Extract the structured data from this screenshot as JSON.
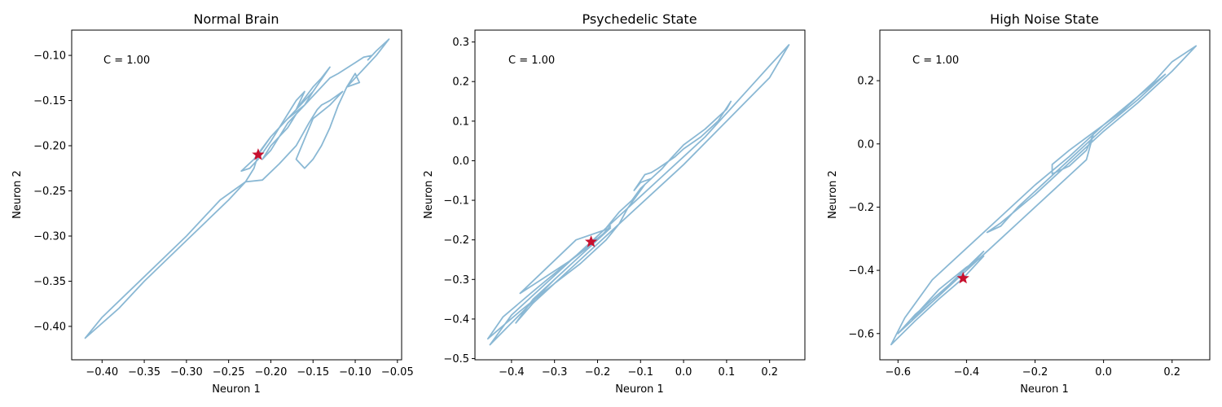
{
  "chart_data": [
    {
      "type": "line",
      "title": "Normal Brain",
      "xlabel": "Neuron 1",
      "ylabel": "Neuron 2",
      "annotation": "C = 1.00",
      "xlim": [
        -0.436,
        -0.045
      ],
      "ylim": [
        -0.437,
        -0.072
      ],
      "xticks": [
        -0.4,
        -0.35,
        -0.3,
        -0.25,
        -0.2,
        -0.15,
        -0.1,
        -0.05
      ],
      "xtick_labels": [
        "−0.40",
        "−0.35",
        "−0.30",
        "−0.25",
        "−0.20",
        "−0.15",
        "−0.10",
        "−0.05"
      ],
      "yticks": [
        -0.4,
        -0.35,
        -0.3,
        -0.25,
        -0.2,
        -0.15,
        -0.1
      ],
      "ytick_labels": [
        "−0.40",
        "−0.35",
        "−0.30",
        "−0.25",
        "−0.20",
        "−0.15",
        "−0.10"
      ],
      "line_color": "#8ab8d4",
      "marker": {
        "x": -0.215,
        "y": -0.21,
        "color": "#c8102e",
        "shape": "star"
      },
      "series": [
        {
          "x": [
            -0.215,
            -0.2,
            -0.18,
            -0.19,
            -0.17,
            -0.16,
            -0.17,
            -0.15,
            -0.14,
            -0.13,
            -0.15,
            -0.165,
            -0.175,
            -0.19,
            -0.2,
            -0.215,
            -0.225,
            -0.235,
            -0.22,
            -0.2,
            -0.18,
            -0.16,
            -0.15,
            -0.16,
            -0.17,
            -0.18,
            -0.19,
            -0.2,
            -0.21,
            -0.2,
            -0.19,
            -0.18,
            -0.17,
            -0.16,
            -0.15,
            -0.14,
            -0.13,
            -0.12,
            -0.11,
            -0.1,
            -0.09,
            -0.08,
            -0.085,
            -0.075,
            -0.06,
            -0.075,
            -0.09,
            -0.1,
            -0.11,
            -0.095,
            -0.1,
            -0.11,
            -0.12,
            -0.13,
            -0.14,
            -0.15,
            -0.16,
            -0.17,
            -0.15,
            -0.13,
            -0.115,
            -0.13,
            -0.14,
            -0.145,
            -0.155,
            -0.17,
            -0.19,
            -0.21,
            -0.23,
            -0.25,
            -0.3,
            -0.35,
            -0.38,
            -0.42,
            -0.4,
            -0.35,
            -0.3,
            -0.26,
            -0.23,
            -0.22,
            -0.215
          ],
          "y": [
            -0.21,
            -0.19,
            -0.17,
            -0.18,
            -0.15,
            -0.14,
            -0.16,
            -0.135,
            -0.125,
            -0.113,
            -0.14,
            -0.155,
            -0.165,
            -0.18,
            -0.195,
            -0.215,
            -0.225,
            -0.228,
            -0.215,
            -0.19,
            -0.17,
            -0.155,
            -0.14,
            -0.155,
            -0.165,
            -0.18,
            -0.19,
            -0.2,
            -0.215,
            -0.205,
            -0.19,
            -0.175,
            -0.165,
            -0.155,
            -0.145,
            -0.135,
            -0.125,
            -0.12,
            -0.114,
            -0.108,
            -0.102,
            -0.1,
            -0.105,
            -0.095,
            -0.082,
            -0.1,
            -0.115,
            -0.125,
            -0.135,
            -0.13,
            -0.12,
            -0.135,
            -0.155,
            -0.18,
            -0.2,
            -0.215,
            -0.225,
            -0.215,
            -0.17,
            -0.155,
            -0.14,
            -0.15,
            -0.155,
            -0.16,
            -0.175,
            -0.2,
            -0.22,
            -0.238,
            -0.24,
            -0.26,
            -0.305,
            -0.35,
            -0.38,
            -0.413,
            -0.39,
            -0.345,
            -0.3,
            -0.26,
            -0.24,
            -0.225,
            -0.21
          ]
        }
      ]
    },
    {
      "type": "line",
      "title": "Psychedelic State",
      "xlabel": "Neuron 1",
      "ylabel": "Neuron 2",
      "annotation": "C = 1.00",
      "xlim": [
        -0.485,
        0.282
      ],
      "ylim": [
        -0.503,
        0.33
      ],
      "xticks": [
        -0.4,
        -0.3,
        -0.2,
        -0.1,
        0.0,
        0.1,
        0.2
      ],
      "xtick_labels": [
        "−0.4",
        "−0.3",
        "−0.2",
        "−0.1",
        "0.0",
        "0.1",
        "0.2"
      ],
      "yticks": [
        -0.5,
        -0.4,
        -0.3,
        -0.2,
        -0.1,
        0.0,
        0.1,
        0.2,
        0.3
      ],
      "ytick_labels": [
        "−0.5",
        "−0.4",
        "−0.3",
        "−0.2",
        "−0.1",
        "0.0",
        "0.1",
        "0.2",
        "0.3"
      ],
      "line_color": "#8ab8d4",
      "marker": {
        "x": -0.215,
        "y": -0.205,
        "color": "#c8102e",
        "shape": "star"
      },
      "series": [
        {
          "x": [
            -0.215,
            -0.19,
            -0.17,
            -0.25,
            -0.38,
            -0.33,
            -0.26,
            -0.2,
            -0.17,
            -0.25,
            -0.35,
            -0.42,
            -0.455,
            -0.38,
            -0.3,
            -0.24,
            -0.18,
            -0.15,
            -0.13,
            -0.11,
            -0.09,
            -0.075,
            -0.1,
            -0.115,
            -0.09,
            -0.075,
            -0.06,
            -0.04,
            -0.02,
            0.0,
            0.04,
            0.08,
            0.11,
            0.1,
            0.05,
            0.0,
            -0.03,
            -0.05,
            -0.08,
            -0.1,
            -0.12,
            -0.15,
            -0.18,
            -0.22,
            -0.27,
            -0.32,
            -0.36,
            -0.4,
            -0.45,
            -0.4,
            -0.35,
            -0.3,
            -0.25,
            -0.2,
            -0.17,
            -0.2,
            -0.25,
            -0.3,
            -0.35,
            -0.39,
            -0.35,
            -0.3,
            -0.25,
            -0.2,
            -0.1,
            0.0,
            0.1,
            0.2,
            0.245,
            0.2,
            0.15,
            0.1,
            0.05,
            0.0,
            -0.05,
            -0.1,
            -0.15,
            -0.2,
            -0.215
          ],
          "y": [
            -0.205,
            -0.19,
            -0.17,
            -0.2,
            -0.335,
            -0.3,
            -0.25,
            -0.2,
            -0.17,
            -0.24,
            -0.33,
            -0.395,
            -0.45,
            -0.38,
            -0.31,
            -0.26,
            -0.2,
            -0.16,
            -0.12,
            -0.09,
            -0.06,
            -0.045,
            -0.055,
            -0.075,
            -0.035,
            -0.03,
            -0.02,
            -0.005,
            0.01,
            0.03,
            0.06,
            0.1,
            0.15,
            0.13,
            0.08,
            0.04,
            0.005,
            -0.02,
            -0.05,
            -0.07,
            -0.1,
            -0.13,
            -0.17,
            -0.21,
            -0.26,
            -0.31,
            -0.35,
            -0.39,
            -0.465,
            -0.41,
            -0.355,
            -0.3,
            -0.25,
            -0.2,
            -0.165,
            -0.2,
            -0.25,
            -0.3,
            -0.35,
            -0.41,
            -0.36,
            -0.31,
            -0.26,
            -0.21,
            -0.11,
            -0.01,
            0.1,
            0.21,
            0.293,
            0.24,
            0.18,
            0.12,
            0.06,
            0.01,
            -0.04,
            -0.09,
            -0.14,
            -0.19,
            -0.205
          ]
        }
      ]
    },
    {
      "type": "line",
      "title": "High Noise State",
      "xlabel": "Neuron 1",
      "ylabel": "Neuron 2",
      "annotation": "C = 1.00",
      "xlim": [
        -0.653,
        0.31
      ],
      "ylim": [
        -0.683,
        0.36
      ],
      "xticks": [
        -0.6,
        -0.4,
        -0.2,
        0.0,
        0.2
      ],
      "xtick_labels": [
        "−0.6",
        "−0.4",
        "−0.2",
        "0.0",
        "0.2"
      ],
      "yticks": [
        -0.6,
        -0.4,
        -0.2,
        0.0,
        0.2
      ],
      "ytick_labels": [
        "−0.6",
        "−0.4",
        "−0.2",
        "0.0",
        "0.2"
      ],
      "line_color": "#8ab8d4",
      "marker": {
        "x": -0.41,
        "y": -0.425,
        "color": "#c8102e",
        "shape": "star"
      },
      "series": [
        {
          "x": [
            -0.41,
            -0.38,
            -0.35,
            -0.4,
            -0.48,
            -0.56,
            -0.5,
            -0.45,
            -0.4,
            -0.35,
            -0.45,
            -0.55,
            -0.6,
            -0.55,
            -0.5,
            -0.45,
            -0.4,
            -0.35,
            -0.3,
            -0.25,
            -0.2,
            -0.15,
            -0.1,
            -0.05,
            -0.03,
            -0.05,
            -0.1,
            -0.15,
            -0.15,
            -0.1,
            -0.05,
            0.0,
            0.05,
            0.1,
            0.15,
            0.2,
            0.27,
            0.2,
            0.1,
            0.0,
            -0.1,
            -0.2,
            -0.3,
            -0.34,
            -0.3,
            -0.25,
            -0.2,
            -0.1,
            0.0,
            0.1,
            0.18,
            0.1,
            0.0,
            -0.1,
            -0.2,
            -0.3,
            -0.4,
            -0.5,
            -0.58,
            -0.62,
            -0.55,
            -0.48,
            -0.41
          ],
          "y": [
            -0.425,
            -0.39,
            -0.355,
            -0.39,
            -0.46,
            -0.555,
            -0.5,
            -0.45,
            -0.4,
            -0.34,
            -0.445,
            -0.54,
            -0.6,
            -0.55,
            -0.5,
            -0.45,
            -0.4,
            -0.35,
            -0.3,
            -0.25,
            -0.2,
            -0.15,
            -0.1,
            -0.05,
            0.03,
            -0.02,
            -0.07,
            -0.095,
            -0.065,
            -0.02,
            0.02,
            0.06,
            0.1,
            0.15,
            0.2,
            0.26,
            0.31,
            0.23,
            0.13,
            0.04,
            -0.06,
            -0.16,
            -0.25,
            -0.28,
            -0.26,
            -0.2,
            -0.15,
            -0.05,
            0.05,
            0.14,
            0.22,
            0.15,
            0.06,
            -0.04,
            -0.13,
            -0.23,
            -0.33,
            -0.43,
            -0.55,
            -0.635,
            -0.56,
            -0.49,
            -0.425
          ]
        }
      ]
    }
  ]
}
